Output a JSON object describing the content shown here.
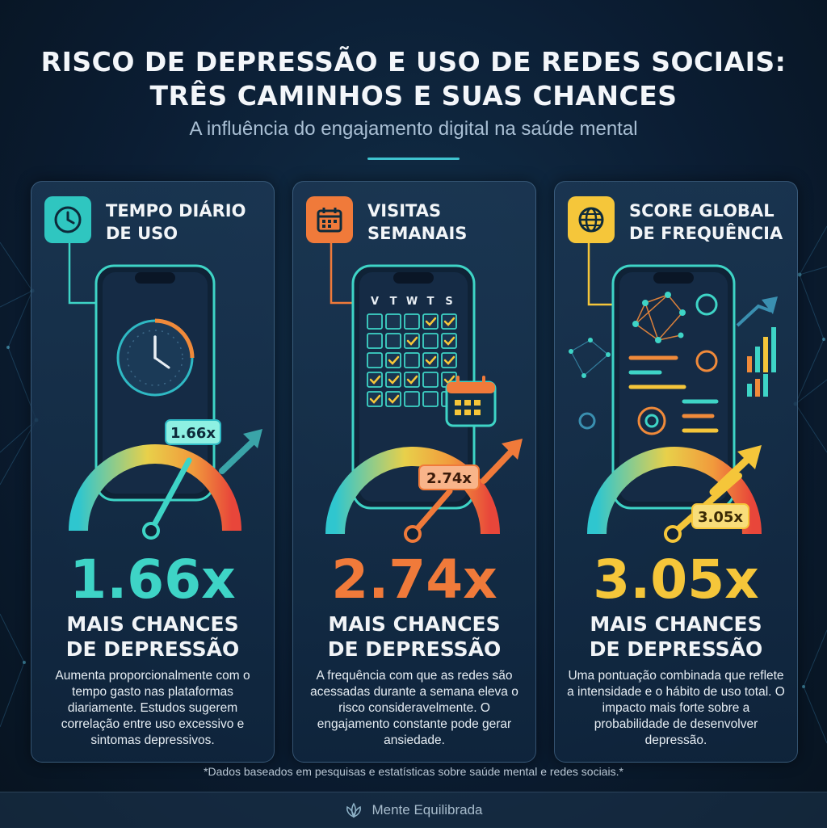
{
  "header": {
    "title_line1": "RISCO DE DEPRESSÃO E USO DE REDES SOCIAIS:",
    "title_line2": "TRÊS CAMINHOS E SUAS CHANCES",
    "subtitle": "A influência do engajamento digital na saúde mental"
  },
  "cards": [
    {
      "title_line1": "TEMPO DIÁRIO",
      "title_line2": "DE USO",
      "icon": "clock-icon",
      "accent": "#3ed4c6",
      "badge": "1.66x",
      "big_value": "1.66x",
      "risk_ratio": 1.66,
      "label_line1": "MAIS CHANCES",
      "label_line2": "DE DEPRESSÃO",
      "description": "Aumenta proporcionalmente com o tempo gasto nas plataformas diariamente. Estudos sugerem correlação entre uso excessivo e sintomas depressivos."
    },
    {
      "title_line1": "VISITAS",
      "title_line2": "SEMANAIS",
      "icon": "calendar-icon",
      "accent": "#f07a3a",
      "badge": "2.74x",
      "big_value": "2.74x",
      "risk_ratio": 2.74,
      "weekday_letters": [
        "V",
        "T",
        "W",
        "T",
        "S"
      ],
      "label_line1": "MAIS CHANCES",
      "label_line2": "DE DEPRESSÃO",
      "description": "A frequência com que as redes são acessadas durante a semana eleva o risco consideravelmente. O engajamento constante pode gerar ansiedade."
    },
    {
      "title_line1": "SCORE GLOBAL",
      "title_line2": "DE FREQUÊNCIA",
      "icon": "globe-icon",
      "accent": "#f5c63a",
      "badge": "3.05x",
      "big_value": "3.05x",
      "risk_ratio": 3.05,
      "label_line1": "MAIS CHANCES",
      "label_line2": "DE DEPRESSÃO",
      "description": "Uma pontuação combinada que reflete a intensidade e o hábito de uso total. O impacto mais forte sobre a probabilidade de desenvolver depressão."
    }
  ],
  "footnote": "*Dados baseados em pesquisas e estatísticas sobre saúde mental e redes sociais.*",
  "footer": {
    "brand": "Mente Equilibrada",
    "icon": "lotus-icon"
  }
}
